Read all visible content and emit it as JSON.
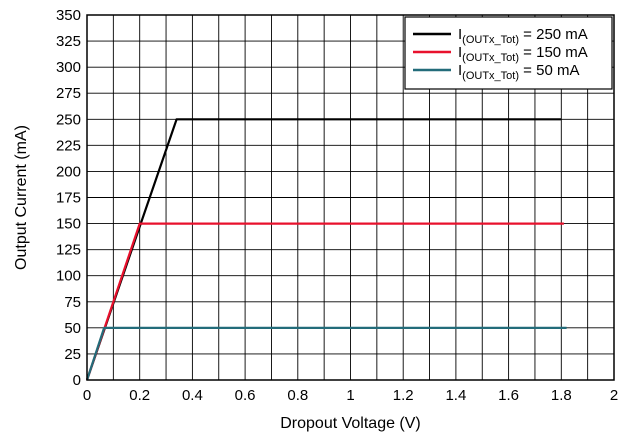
{
  "chart_data": {
    "type": "line",
    "title": "",
    "xlabel": "Dropout Voltage (V)",
    "ylabel": "Output Current (mA)",
    "xlim": [
      0,
      2
    ],
    "ylim": [
      0,
      350
    ],
    "x_ticks": [
      "0",
      "0.2",
      "0.4",
      "0.6",
      "0.8",
      "1",
      "1.2",
      "1.4",
      "1.6",
      "1.8",
      "2"
    ],
    "x_tick_values": [
      0,
      0.2,
      0.4,
      0.6,
      0.8,
      1,
      1.2,
      1.4,
      1.6,
      1.8,
      2
    ],
    "y_ticks": [
      "0",
      "25",
      "50",
      "75",
      "100",
      "125",
      "150",
      "175",
      "200",
      "225",
      "250",
      "275",
      "300",
      "325",
      "350"
    ],
    "y_tick_values": [
      0,
      25,
      50,
      75,
      100,
      125,
      150,
      175,
      200,
      225,
      250,
      275,
      300,
      325,
      350
    ],
    "x_minor_divisions": 2,
    "grid": true,
    "legend_position": "top-right",
    "series": [
      {
        "name_prefix": "I",
        "name_sub": "(OUTx_Tot)",
        "name_suffix": " = 250 mA",
        "color": "#000000",
        "x": [
          0.0,
          0.34,
          0.36,
          1.8
        ],
        "y": [
          0,
          250,
          250,
          250
        ]
      },
      {
        "name_prefix": "I",
        "name_sub": "(OUTx_Tot)",
        "name_suffix": " = 150 mA",
        "color": "#e8112d",
        "x": [
          0.0,
          0.2,
          0.21,
          1.81
        ],
        "y": [
          0,
          150,
          150,
          150
        ]
      },
      {
        "name_prefix": "I",
        "name_sub": "(OUTx_Tot)",
        "name_suffix": " = 50 mA",
        "color": "#236c7a",
        "x": [
          0.0,
          0.065,
          0.07,
          1.82
        ],
        "y": [
          0,
          50,
          50,
          50
        ]
      }
    ]
  }
}
